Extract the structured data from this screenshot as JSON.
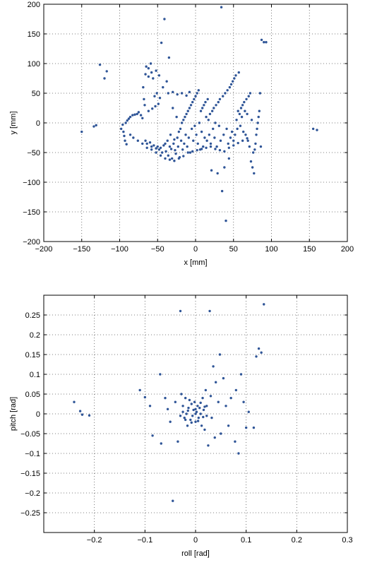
{
  "charts": [
    {
      "type": "scatter",
      "xlabel": "x [mm]",
      "ylabel": "y [mm]",
      "xlim": [
        -200,
        200
      ],
      "ylim": [
        -200,
        200
      ],
      "xticks": [
        -200,
        -150,
        -100,
        -50,
        0,
        50,
        100,
        150,
        200
      ],
      "yticks": [
        -200,
        -150,
        -100,
        -50,
        0,
        50,
        100,
        150,
        200
      ],
      "grid": true,
      "marker_color": "#2f5597",
      "points": [
        [
          -150,
          -15
        ],
        [
          -134,
          -6
        ],
        [
          -131,
          -4
        ],
        [
          -126,
          98
        ],
        [
          -120,
          75
        ],
        [
          -117,
          87
        ],
        [
          -98,
          -10
        ],
        [
          -96,
          -3
        ],
        [
          -95,
          -15
        ],
        [
          -94,
          -22
        ],
        [
          -93,
          -30
        ],
        [
          -92,
          0
        ],
        [
          -91,
          -36
        ],
        [
          -90,
          4
        ],
        [
          -88,
          7
        ],
        [
          -86,
          10
        ],
        [
          -83,
          13
        ],
        [
          -80,
          14
        ],
        [
          -77,
          15
        ],
        [
          -75,
          18
        ],
        [
          -72,
          13
        ],
        [
          -70,
          8
        ],
        [
          -69,
          60
        ],
        [
          -68,
          40
        ],
        [
          -67,
          30
        ],
        [
          -66,
          -30
        ],
        [
          -65,
          95
        ],
        [
          -64,
          -35
        ],
        [
          -62,
          92
        ],
        [
          -62,
          20
        ],
        [
          -60,
          -33
        ],
        [
          -59,
          100
        ],
        [
          -58,
          -40
        ],
        [
          -57,
          24
        ],
        [
          -55,
          -38
        ],
        [
          -54,
          45
        ],
        [
          -53,
          28
        ],
        [
          -52,
          -43
        ],
        [
          -51,
          50
        ],
        [
          -50,
          -40
        ],
        [
          -49,
          32
        ],
        [
          -48,
          -45
        ],
        [
          -47,
          42
        ],
        [
          -46,
          -42
        ],
        [
          -45,
          135
        ],
        [
          -44,
          -50
        ],
        [
          -43,
          60
        ],
        [
          -42,
          -38
        ],
        [
          -41,
          175
        ],
        [
          -40,
          -35
        ],
        [
          -39,
          -48
        ],
        [
          -38,
          70
        ],
        [
          -37,
          -30
        ],
        [
          -36,
          -55
        ],
        [
          -35,
          110
        ],
        [
          -34,
          -40
        ],
        [
          -33,
          -20
        ],
        [
          -32,
          -44
        ],
        [
          -31,
          -60
        ],
        [
          -30,
          25
        ],
        [
          -29,
          -35
        ],
        [
          -28,
          -28
        ],
        [
          -27,
          -46
        ],
        [
          -26,
          -52
        ],
        [
          -25,
          10
        ],
        [
          -24,
          -25
        ],
        [
          -23,
          -40
        ],
        [
          -22,
          -15
        ],
        [
          -21,
          -58
        ],
        [
          -20,
          -10
        ],
        [
          -19,
          -30
        ],
        [
          -18,
          0
        ],
        [
          -17,
          -45
        ],
        [
          -16,
          5
        ],
        [
          -15,
          -35
        ],
        [
          -14,
          10
        ],
        [
          -13,
          -20
        ],
        [
          -12,
          15
        ],
        [
          -11,
          -40
        ],
        [
          -10,
          20
        ],
        [
          -9,
          -25
        ],
        [
          -8,
          25
        ],
        [
          -7,
          -50
        ],
        [
          -6,
          30
        ],
        [
          -5,
          -10
        ],
        [
          -4,
          35
        ],
        [
          -3,
          -30
        ],
        [
          -2,
          40
        ],
        [
          -1,
          -5
        ],
        [
          0,
          45
        ],
        [
          1,
          -20
        ],
        [
          2,
          50
        ],
        [
          3,
          -35
        ],
        [
          4,
          55
        ],
        [
          5,
          0
        ],
        [
          6,
          -45
        ],
        [
          7,
          20
        ],
        [
          8,
          -15
        ],
        [
          9,
          25
        ],
        [
          10,
          -40
        ],
        [
          11,
          30
        ],
        [
          12,
          -25
        ],
        [
          13,
          35
        ],
        [
          14,
          10
        ],
        [
          15,
          -30
        ],
        [
          16,
          40
        ],
        [
          17,
          5
        ],
        [
          18,
          -20
        ],
        [
          19,
          15
        ],
        [
          20,
          -35
        ],
        [
          21,
          -80
        ],
        [
          22,
          20
        ],
        [
          23,
          -10
        ],
        [
          24,
          25
        ],
        [
          25,
          -25
        ],
        [
          26,
          0
        ],
        [
          27,
          30
        ],
        [
          28,
          -40
        ],
        [
          29,
          -85
        ],
        [
          30,
          35
        ],
        [
          31,
          -5
        ],
        [
          32,
          40
        ],
        [
          33,
          -30
        ],
        [
          34,
          195
        ],
        [
          35,
          -115
        ],
        [
          36,
          45
        ],
        [
          37,
          -20
        ],
        [
          38,
          -75
        ],
        [
          39,
          50
        ],
        [
          40,
          -165
        ],
        [
          41,
          -10
        ],
        [
          42,
          55
        ],
        [
          43,
          -35
        ],
        [
          44,
          -60
        ],
        [
          45,
          60
        ],
        [
          46,
          -25
        ],
        [
          47,
          65
        ],
        [
          48,
          -15
        ],
        [
          49,
          70
        ],
        [
          50,
          -30
        ],
        [
          51,
          75
        ],
        [
          52,
          -20
        ],
        [
          53,
          80
        ],
        [
          54,
          5
        ],
        [
          55,
          -10
        ],
        [
          56,
          20
        ],
        [
          57,
          85
        ],
        [
          58,
          15
        ],
        [
          59,
          -5
        ],
        [
          60,
          25
        ],
        [
          61,
          10
        ],
        [
          62,
          30
        ],
        [
          63,
          -15
        ],
        [
          64,
          35
        ],
        [
          65,
          20
        ],
        [
          66,
          -20
        ],
        [
          67,
          40
        ],
        [
          68,
          15
        ],
        [
          69,
          -30
        ],
        [
          70,
          45
        ],
        [
          71,
          -40
        ],
        [
          72,
          50
        ],
        [
          73,
          -65
        ],
        [
          74,
          5
        ],
        [
          75,
          -75
        ],
        [
          76,
          -50
        ],
        [
          77,
          -85
        ],
        [
          78,
          -45
        ],
        [
          79,
          -35
        ],
        [
          80,
          -20
        ],
        [
          81,
          -10
        ],
        [
          82,
          0
        ],
        [
          83,
          10
        ],
        [
          84,
          20
        ],
        [
          85,
          50
        ],
        [
          86,
          -40
        ],
        [
          87,
          140
        ],
        [
          90,
          136
        ],
        [
          93,
          136
        ],
        [
          155,
          -10
        ],
        [
          160,
          -12
        ],
        [
          -56,
          75
        ],
        [
          -58,
          85
        ],
        [
          -62,
          78
        ],
        [
          -66,
          82
        ],
        [
          -48,
          80
        ],
        [
          -52,
          88
        ],
        [
          -36,
          50
        ],
        [
          -30,
          52
        ],
        [
          -24,
          48
        ],
        [
          -18,
          50
        ],
        [
          -12,
          46
        ],
        [
          -8,
          52
        ],
        [
          -70,
          -35
        ],
        [
          -76,
          -30
        ],
        [
          -82,
          -25
        ],
        [
          -86,
          -20
        ],
        [
          -64,
          -42
        ],
        [
          -58,
          -45
        ],
        [
          -52,
          -50
        ],
        [
          -46,
          -55
        ],
        [
          -40,
          -60
        ],
        [
          -34,
          -62
        ],
        [
          -28,
          -64
        ],
        [
          -22,
          -60
        ],
        [
          -16,
          -56
        ],
        [
          -10,
          -50
        ],
        [
          -4,
          -48
        ],
        [
          2,
          -46
        ],
        [
          8,
          -44
        ],
        [
          14,
          -42
        ],
        [
          20,
          -40
        ],
        [
          26,
          -44
        ],
        [
          32,
          -46
        ],
        [
          38,
          -48
        ],
        [
          44,
          -42
        ],
        [
          50,
          -38
        ],
        [
          56,
          -34
        ],
        [
          62,
          -30
        ],
        [
          68,
          -26
        ]
      ]
    },
    {
      "type": "scatter",
      "xlabel": "roll [rad]",
      "ylabel": "pitch [rad]",
      "xlim": [
        -0.3,
        0.3
      ],
      "ylim": [
        -0.3,
        0.3
      ],
      "xticks": [
        -0.2,
        -0.1,
        0,
        0.1,
        0.2,
        0.3
      ],
      "yticks": [
        -0.25,
        -0.2,
        -0.15,
        -0.1,
        -0.05,
        0,
        0.05,
        0.1,
        0.15,
        0.2,
        0.25
      ],
      "grid": true,
      "marker_color": "#2f5597",
      "points": [
        [
          -0.24,
          0.03
        ],
        [
          -0.228,
          0.007
        ],
        [
          -0.224,
          -0.002
        ],
        [
          -0.21,
          -0.004
        ],
        [
          -0.11,
          0.06
        ],
        [
          -0.1,
          0.042
        ],
        [
          -0.09,
          0.02
        ],
        [
          -0.085,
          -0.055
        ],
        [
          -0.07,
          0.1
        ],
        [
          -0.068,
          -0.075
        ],
        [
          -0.06,
          0.04
        ],
        [
          -0.055,
          0.012
        ],
        [
          -0.05,
          -0.02
        ],
        [
          -0.045,
          -0.22
        ],
        [
          -0.04,
          0.03
        ],
        [
          -0.035,
          -0.07
        ],
        [
          -0.03,
          0.26
        ],
        [
          -0.028,
          0.05
        ],
        [
          -0.025,
          0.02
        ],
        [
          -0.022,
          -0.01
        ],
        [
          -0.02,
          0.04
        ],
        [
          -0.018,
          0.0
        ],
        [
          -0.016,
          -0.03
        ],
        [
          -0.014,
          0.015
        ],
        [
          -0.012,
          0.035
        ],
        [
          -0.01,
          -0.015
        ],
        [
          -0.008,
          0.025
        ],
        [
          -0.006,
          -0.005
        ],
        [
          -0.004,
          0.01
        ],
        [
          -0.002,
          0.03
        ],
        [
          0.0,
          -0.02
        ],
        [
          0.002,
          0.005
        ],
        [
          0.004,
          0.02
        ],
        [
          0.006,
          -0.01
        ],
        [
          0.008,
          0.015
        ],
        [
          0.01,
          0.0
        ],
        [
          0.012,
          -0.03
        ],
        [
          0.014,
          0.04
        ],
        [
          0.016,
          0.01
        ],
        [
          0.018,
          -0.04
        ],
        [
          0.02,
          0.06
        ],
        [
          0.022,
          0.02
        ],
        [
          0.025,
          -0.08
        ],
        [
          0.028,
          0.26
        ],
        [
          0.03,
          0.045
        ],
        [
          0.032,
          -0.01
        ],
        [
          0.035,
          0.12
        ],
        [
          0.038,
          -0.06
        ],
        [
          0.04,
          0.08
        ],
        [
          0.045,
          0.03
        ],
        [
          0.048,
          0.15
        ],
        [
          0.05,
          -0.05
        ],
        [
          0.055,
          0.09
        ],
        [
          0.06,
          0.02
        ],
        [
          0.065,
          -0.03
        ],
        [
          0.07,
          0.04
        ],
        [
          0.078,
          -0.07
        ],
        [
          0.08,
          0.06
        ],
        [
          0.085,
          -0.1
        ],
        [
          0.09,
          0.1
        ],
        [
          0.095,
          0.03
        ],
        [
          0.1,
          -0.035
        ],
        [
          0.105,
          0.005
        ],
        [
          0.115,
          -0.035
        ],
        [
          0.12,
          0.145
        ],
        [
          0.125,
          0.165
        ],
        [
          0.13,
          0.155
        ],
        [
          0.135,
          0.277
        ],
        [
          -0.03,
          -0.005
        ],
        [
          -0.015,
          0.008
        ],
        [
          0.0,
          0.012
        ],
        [
          0.015,
          -0.008
        ],
        [
          -0.02,
          -0.015
        ],
        [
          0.005,
          -0.018
        ],
        [
          0.018,
          0.018
        ],
        [
          -0.008,
          -0.022
        ],
        [
          0.01,
          0.028
        ],
        [
          -0.025,
          0.005
        ],
        [
          0.022,
          -0.005
        ],
        [
          0.0,
          0.0
        ]
      ]
    }
  ]
}
